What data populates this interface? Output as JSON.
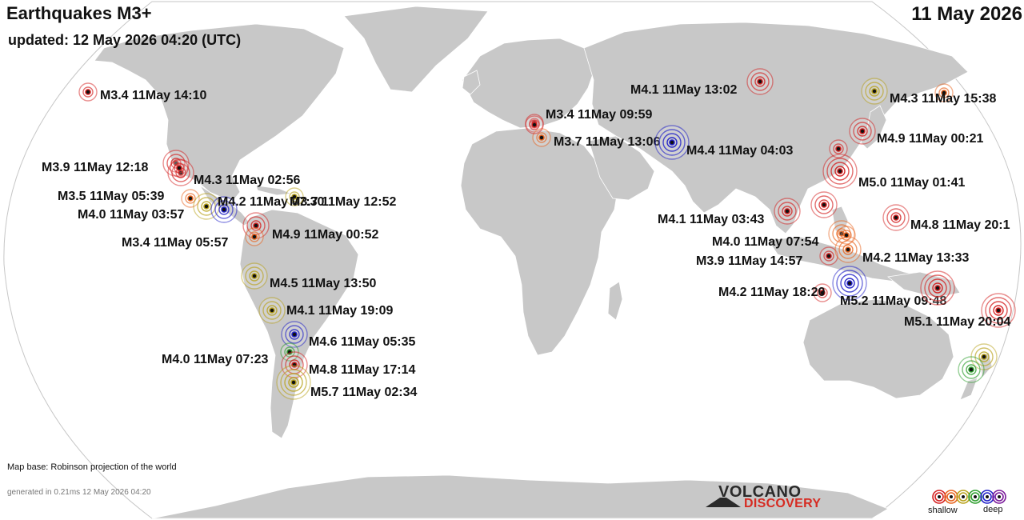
{
  "header": {
    "title": "Earthquakes M3+",
    "updated": "updated: 12 May 2026 04:20 (UTC)",
    "date": "11 May 2026"
  },
  "footer": {
    "map_base": "Map base: Robinson projection of the world",
    "generated": "generated in 0.21ms 12 May 2026 04:20"
  },
  "logo": {
    "line1": "VOLCANO",
    "line2": "DISCOVERY"
  },
  "legend": {
    "shallow": "shallow",
    "deep": "deep",
    "depth_colors": [
      "#d42020",
      "#e8641e",
      "#b8a21c",
      "#2e9e2e",
      "#2020c8",
      "#7a1a9a"
    ]
  },
  "colors": {
    "land": "#c8c8c8",
    "ocean": "#ffffff",
    "outline": "#bdbdbd"
  },
  "earthquakes": [
    {
      "label": "M3.4 11May 14:10",
      "depth": "shallow",
      "color": "#d42020"
    },
    {
      "label": "M3.9 11May 12:18",
      "depth": "shallow",
      "color": "#d42020"
    },
    {
      "label": "M4.3 11May 02:56",
      "depth": "shallow",
      "color": "#d42020"
    },
    {
      "label": "M3.5 11May 05:39",
      "depth": "shallow",
      "color": "#e8641e"
    },
    {
      "label": "M4.0 11May 03:57",
      "depth": "intermediate",
      "color": "#b8a21c"
    },
    {
      "label": "M4.2 11May 07:30",
      "depth": "deep",
      "color": "#2020c8"
    },
    {
      "label": "M3.7 11May 12:52",
      "depth": "intermediate",
      "color": "#b8a21c"
    },
    {
      "label": "M4.9 11May 00:52",
      "depth": "shallow",
      "color": "#d42020"
    },
    {
      "label": "M3.4 11May 05:57",
      "depth": "shallow",
      "color": "#e8641e"
    },
    {
      "label": "M4.5 11May 13:50",
      "depth": "intermediate",
      "color": "#b8a21c"
    },
    {
      "label": "M4.1 11May 19:09",
      "depth": "intermediate",
      "color": "#b8a21c"
    },
    {
      "label": "M4.6 11May 05:35",
      "depth": "deep",
      "color": "#2020c8"
    },
    {
      "label": "M4.0 11May 07:23",
      "depth": "intermediate",
      "color": "#2e9e2e"
    },
    {
      "label": "M4.8 11May 17:14",
      "depth": "shallow",
      "color": "#d42020"
    },
    {
      "label": "M5.7 11May 02:34",
      "depth": "intermediate",
      "color": "#b8a21c"
    },
    {
      "label": "M3.4 11May 09:59",
      "depth": "shallow",
      "color": "#d42020"
    },
    {
      "label": "M3.7 11May 13:06",
      "depth": "shallow",
      "color": "#e8641e"
    },
    {
      "label": "M4.4 11May 04:03",
      "depth": "deep",
      "color": "#2020c8"
    },
    {
      "label": "M4.1 11May 13:02",
      "depth": "shallow",
      "color": "#d42020"
    },
    {
      "label": "M4.3 11May 15:38",
      "depth": "shallow",
      "color": "#e8641e"
    },
    {
      "label": "M4.9 11May 00:21",
      "depth": "shallow",
      "color": "#d42020"
    },
    {
      "label": "M5.0 11May 01:41",
      "depth": "shallow",
      "color": "#d42020"
    },
    {
      "label": "M4.1 11May 03:43",
      "depth": "shallow",
      "color": "#d42020"
    },
    {
      "label": "M4.8 11May 20:1",
      "depth": "shallow",
      "color": "#d42020"
    },
    {
      "label": "M4.0 11May 07:54",
      "depth": "shallow",
      "color": "#e8641e"
    },
    {
      "label": "M3.9 11May 14:57",
      "depth": "shallow",
      "color": "#d42020"
    },
    {
      "label": "M4.2 11May 13:33",
      "depth": "shallow",
      "color": "#e8641e"
    },
    {
      "label": "M4.2 11May 18:20",
      "depth": "shallow",
      "color": "#d42020"
    },
    {
      "label": "M5.2 11May 09:48",
      "depth": "deep",
      "color": "#2020c8"
    },
    {
      "label": "M5.1 11May 20:04",
      "depth": "shallow",
      "color": "#d42020"
    },
    {
      "label": "",
      "depth": "intermediate",
      "color": "#b8a21c"
    },
    {
      "label": "",
      "depth": "intermediate",
      "color": "#b8a21c"
    },
    {
      "label": "",
      "depth": "intermediate",
      "color": "#2e9e2e"
    },
    {
      "label": "",
      "depth": "shallow",
      "color": "#d42020"
    },
    {
      "label": "",
      "depth": "shallow",
      "color": "#d42020"
    },
    {
      "label": "",
      "depth": "shallow",
      "color": "#d42020"
    },
    {
      "label": "",
      "depth": "shallow",
      "color": "#d42020"
    },
    {
      "label": "",
      "depth": "shallow",
      "color": "#e8641e"
    },
    {
      "label": "",
      "depth": "shallow",
      "color": "#d42020"
    }
  ]
}
